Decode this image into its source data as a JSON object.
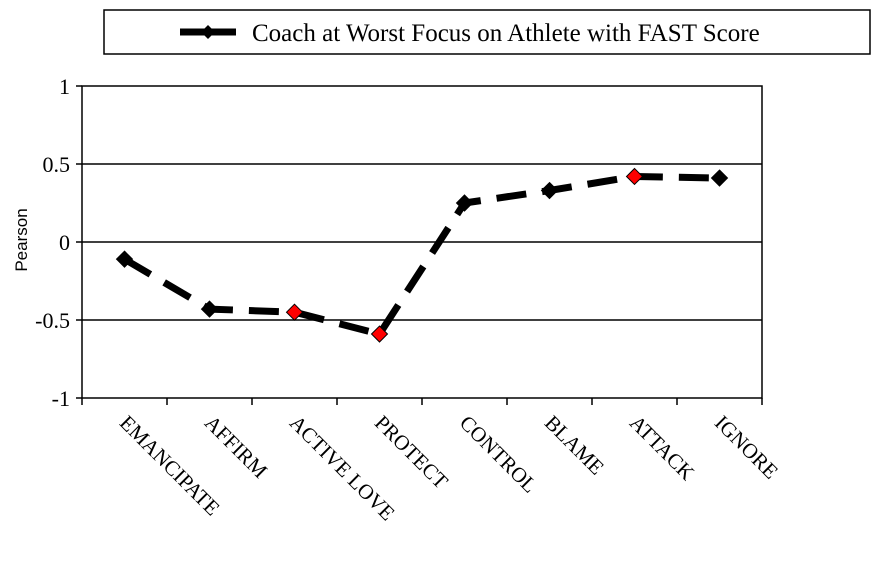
{
  "chart_data": {
    "type": "line",
    "categories": [
      "EMANCIPATE",
      "AFFIRM",
      "ACTIVE LOVE",
      "PROTECT",
      "CONTROL",
      "BLAME",
      "ATTACK",
      "IGNORE"
    ],
    "series": [
      {
        "name": "Coach at Worst Focus on Athlete with FAST Score",
        "values": [
          -0.11,
          -0.43,
          -0.45,
          -0.59,
          0.25,
          0.33,
          0.42,
          0.41
        ],
        "highlighted": [
          false,
          false,
          true,
          true,
          false,
          false,
          true,
          false
        ]
      }
    ],
    "ylabel": "Pearson",
    "ylim": [
      -1,
      1
    ],
    "yticks": [
      -1,
      -0.5,
      0,
      0.5,
      1
    ],
    "ytick_labels": [
      "-1",
      "-0.5",
      "0",
      "0.5",
      "1"
    ],
    "grid": true,
    "legend": "top",
    "colors": {
      "line": "#000000",
      "marker": "#000000",
      "highlight": "#ff0000"
    }
  }
}
